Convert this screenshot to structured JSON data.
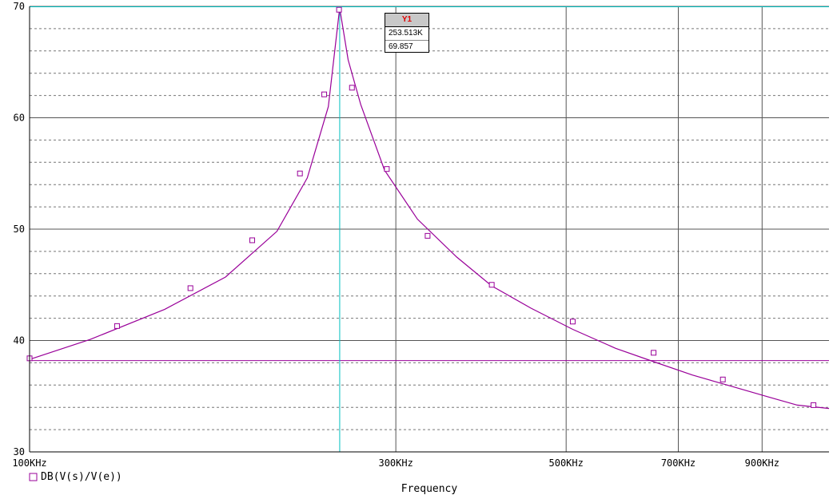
{
  "chart_data": {
    "type": "line",
    "xlabel": "Frequency",
    "x_scale": "log",
    "xlim": [
      100000,
      1100000
    ],
    "ylim": [
      30,
      70
    ],
    "x_ticks": [
      {
        "value": 100000,
        "label": "100KHz"
      },
      {
        "value": 300000,
        "label": "300KHz"
      },
      {
        "value": 500000,
        "label": "500KHz"
      },
      {
        "value": 700000,
        "label": "700KHz"
      },
      {
        "value": 900000,
        "label": "900KHz"
      }
    ],
    "y_ticks": [
      {
        "value": 30,
        "label": "30"
      },
      {
        "value": 40,
        "label": "40"
      },
      {
        "value": 50,
        "label": "50"
      },
      {
        "value": 60,
        "label": "60"
      },
      {
        "value": 70,
        "label": "70"
      }
    ],
    "grid": true,
    "series": [
      {
        "name": "DB(V(s)/V(e))",
        "color": "#990099",
        "marker": "square",
        "x": [
          100000,
          120000,
          150000,
          180000,
          210000,
          230000,
          245000,
          253513,
          260000,
          270000,
          290000,
          320000,
          360000,
          400000,
          450000,
          510000,
          580000,
          650000,
          730000,
          820000,
          920000,
          1000000,
          1100000
        ],
        "y": [
          38.3,
          40.1,
          42.8,
          45.7,
          49.8,
          54.6,
          61.0,
          69.857,
          65.2,
          61.2,
          55.3,
          50.9,
          47.5,
          44.9,
          42.9,
          41.0,
          39.3,
          38.1,
          36.9,
          35.9,
          34.9,
          34.2,
          33.9
        ],
        "markers": [
          {
            "x": 100000,
            "y": 38.4
          },
          {
            "x": 130000,
            "y": 41.3
          },
          {
            "x": 162000,
            "y": 44.7
          },
          {
            "x": 195000,
            "y": 49.0
          },
          {
            "x": 225000,
            "y": 55.0
          },
          {
            "x": 242000,
            "y": 62.1
          },
          {
            "x": 253000,
            "y": 69.7
          },
          {
            "x": 263000,
            "y": 62.7
          },
          {
            "x": 292000,
            "y": 55.4
          },
          {
            "x": 330000,
            "y": 49.4
          },
          {
            "x": 400000,
            "y": 45.0
          },
          {
            "x": 510000,
            "y": 41.7
          },
          {
            "x": 650000,
            "y": 38.9
          },
          {
            "x": 800000,
            "y": 36.5
          },
          {
            "x": 1050000,
            "y": 34.2
          }
        ]
      }
    ],
    "horizontal_line": {
      "y": 38.2,
      "color": "#990099"
    },
    "cursor": {
      "name": "Y1",
      "x": 253513,
      "y": 69.857,
      "x_label": "253.513K",
      "y_label": "69.857",
      "line_color": "#00c0c0"
    },
    "legend": {
      "label": "DB(V(s)/V(e))",
      "position": "bottom-left"
    }
  }
}
